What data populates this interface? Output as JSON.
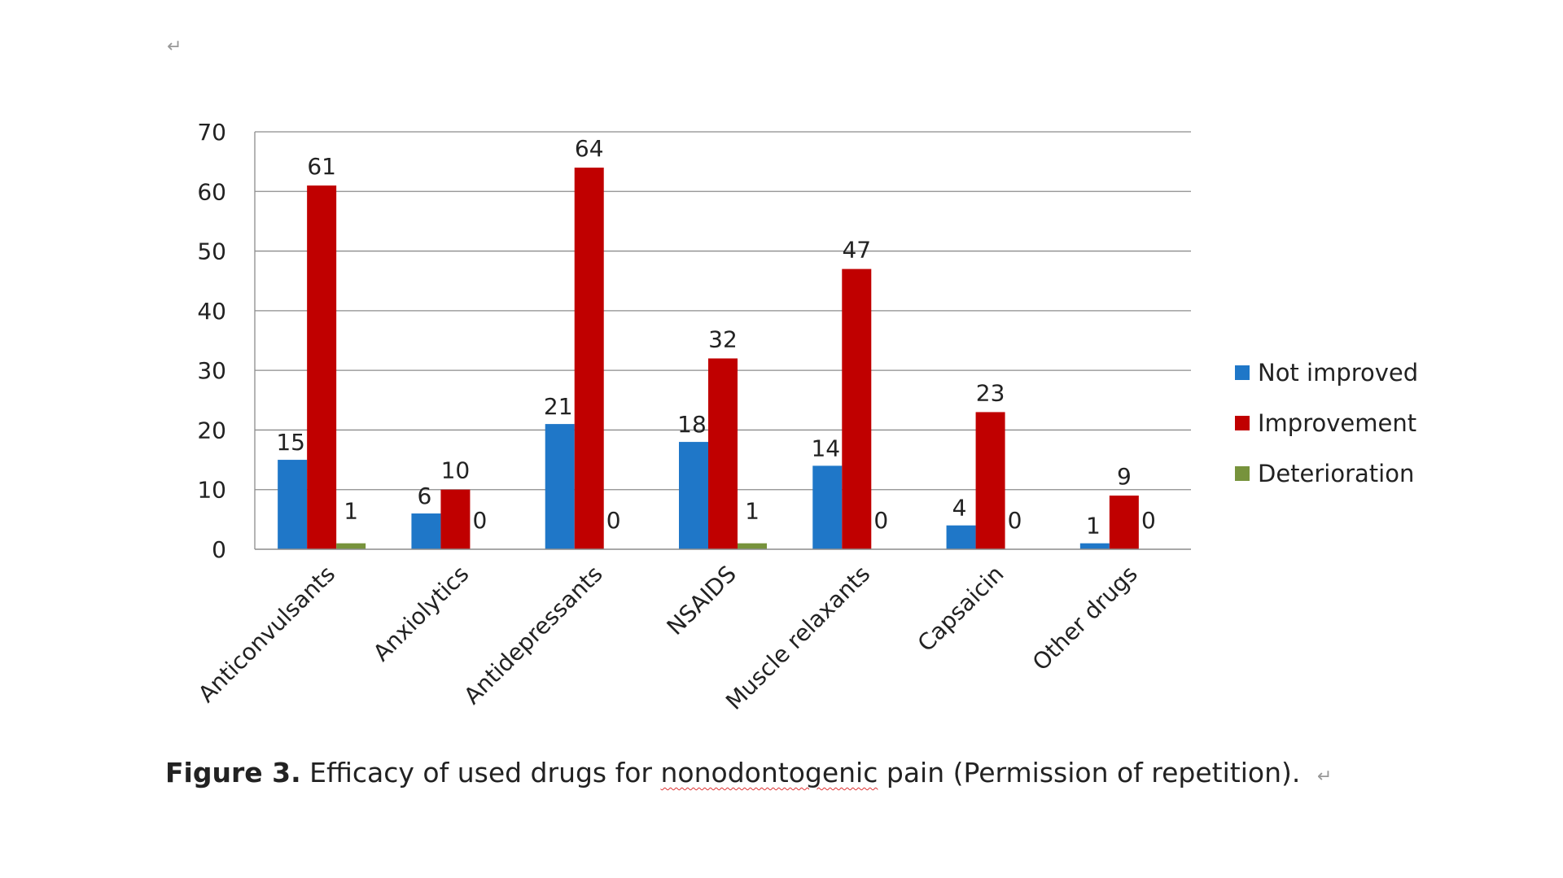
{
  "page": {
    "para_mark_top": "↵"
  },
  "caption": {
    "label": "Figure 3.",
    "text_before": "Efficacy of used drugs for",
    "misspelled_word": "nonodontogenic",
    "text_after": "pain (Permission of repetition).",
    "para_mark": "↵"
  },
  "chart_data": {
    "type": "bar",
    "title": "",
    "xlabel": "",
    "ylabel": "",
    "ylim": [
      0,
      70
    ],
    "yticks": [
      0,
      10,
      20,
      30,
      40,
      50,
      60,
      70
    ],
    "grid": true,
    "legend_position": "right",
    "categories": [
      "Anticonvulsants",
      "Anxiolytics",
      "Antidepressants",
      "NSAIDS",
      "Muscle relaxants",
      "Capsaicin",
      "Other drugs"
    ],
    "series": [
      {
        "name": "Not improved",
        "color": "#1f77c8",
        "values": [
          15,
          6,
          21,
          18,
          14,
          4,
          1
        ]
      },
      {
        "name": "Improvement",
        "color": "#c00000",
        "values": [
          61,
          10,
          64,
          32,
          47,
          23,
          9
        ]
      },
      {
        "name": "Deterioration",
        "color": "#77933c",
        "values": [
          1,
          0,
          0,
          1,
          0,
          0,
          0
        ]
      }
    ]
  }
}
